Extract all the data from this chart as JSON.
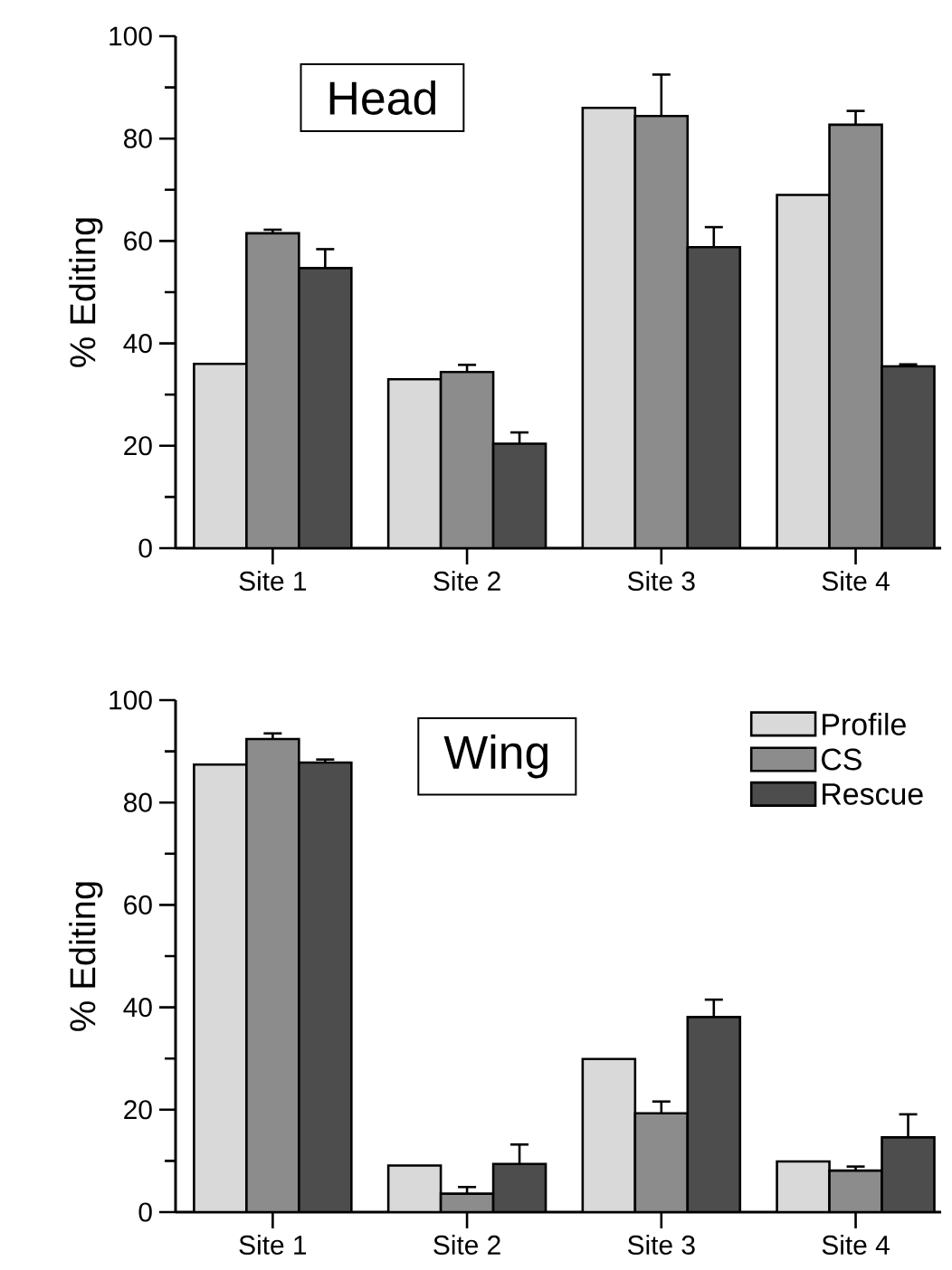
{
  "chart_data": [
    {
      "type": "bar",
      "title": "Head",
      "ylabel": "% Editing",
      "categories": [
        "Site 1",
        "Site 2",
        "Site 3",
        "Site 4"
      ],
      "series": [
        {
          "color": "#d9d9d9",
          "values": [
            36,
            33,
            86,
            69
          ]
        },
        {
          "color": "#8c8c8c",
          "values": [
            61.5,
            34.4,
            84.4,
            82.7
          ],
          "errors": [
            [
              61.5,
              62.2
            ],
            [
              34.4,
              35.8
            ],
            [
              84.4,
              92.5
            ],
            [
              82.7,
              85.4
            ]
          ]
        },
        {
          "color": "#4d4d4d",
          "values": [
            54.7,
            20.4,
            58.8,
            35.5
          ],
          "errors": [
            [
              54.7,
              58.4
            ],
            [
              20.4,
              22.6
            ],
            [
              58.8,
              62.7
            ],
            [
              35.5,
              35.9
            ]
          ]
        }
      ],
      "ylim": [
        0,
        100
      ],
      "yticks": [
        0,
        20,
        40,
        60,
        80,
        100
      ]
    },
    {
      "type": "bar",
      "title": "Wing",
      "ylabel": "% Editing",
      "categories": [
        "Site 1",
        "Site 2",
        "Site 3",
        "Site 4"
      ],
      "series": [
        {
          "name": "Profile",
          "color": "#d9d9d9",
          "values": [
            87.4,
            9.1,
            29.9,
            9.9
          ]
        },
        {
          "name": "CS",
          "color": "#8c8c8c",
          "values": [
            92.4,
            3.6,
            19.3,
            8.1
          ],
          "errors": [
            [
              92.4,
              93.5
            ],
            [
              3.6,
              4.9
            ],
            [
              19.3,
              21.6
            ],
            [
              8.1,
              8.9
            ]
          ]
        },
        {
          "name": "Rescue",
          "color": "#4d4d4d",
          "values": [
            87.8,
            9.4,
            38.1,
            14.6
          ],
          "errors": [
            [
              87.8,
              88.4
            ],
            [
              9.4,
              13.2
            ],
            [
              38.1,
              41.5
            ],
            [
              14.6,
              19.1
            ]
          ]
        }
      ],
      "ylim": [
        0,
        100
      ],
      "yticks": [
        0,
        20,
        40,
        60,
        80,
        100
      ],
      "legend": "top right"
    }
  ]
}
